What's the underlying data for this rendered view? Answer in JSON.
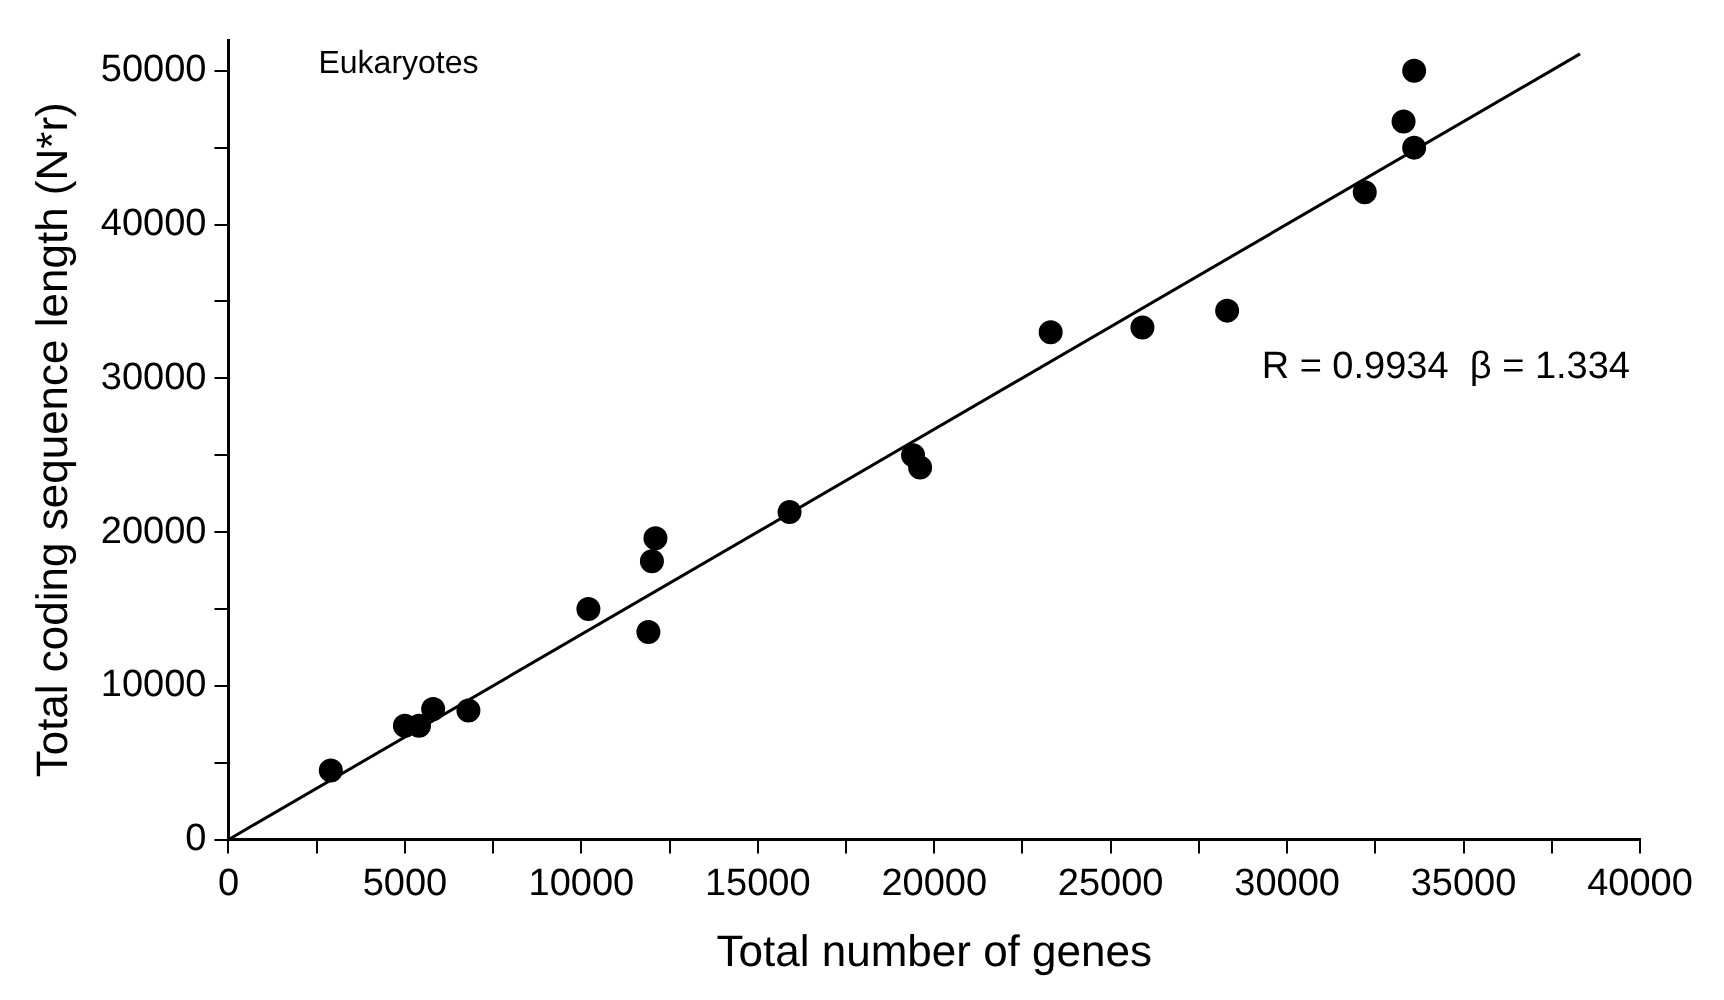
{
  "chart_data": {
    "type": "scatter",
    "xlabel": "Total number of genes",
    "ylabel": "Total coding sequence length (N*r)",
    "annotations": [
      "Eukaryotes",
      "R = 0.9934  β = 1.334"
    ],
    "series": [
      {
        "color": "#000000",
        "marker": "circle",
        "x": [
          2900,
          5000,
          5400,
          5800,
          6800,
          10200,
          11900,
          12000,
          12100,
          15900,
          19400,
          19600,
          23300,
          25900,
          28300,
          32200,
          33300,
          33600,
          33600
        ],
        "values": [
          4500,
          7400,
          7400,
          8500,
          8400,
          15000,
          13500,
          18100,
          19600,
          21300,
          25000,
          24200,
          33000,
          33300,
          34400,
          42100,
          46700,
          45000,
          50000
        ]
      },
      {
        "type": "line",
        "color": "#000000",
        "marker": "none",
        "x": [
          0,
          38300
        ],
        "values": [
          0,
          51100
        ]
      }
    ],
    "xlim": [
      0,
      40000
    ],
    "ylim": [
      0,
      52000
    ],
    "xticks": [
      0,
      {
        "value": 2500,
        "label": null
      },
      5000,
      {
        "value": 7500,
        "label": null
      },
      10000,
      {
        "value": 12500,
        "label": null
      },
      15000,
      {
        "value": 17500,
        "label": null
      },
      20000,
      {
        "value": 22500,
        "label": null
      },
      25000,
      {
        "value": 27500,
        "label": null
      },
      30000,
      {
        "value": 32500,
        "label": null
      },
      35000,
      {
        "value": 37500,
        "label": null
      },
      40000
    ],
    "yticks": [
      0,
      {
        "value": 5000,
        "label": null
      },
      10000,
      {
        "value": 15000,
        "label": null
      },
      20000,
      {
        "value": 25000,
        "label": null
      },
      30000,
      {
        "value": 35000,
        "label": null
      },
      40000,
      {
        "value": 45000,
        "label": null
      },
      50000
    ],
    "grid": false,
    "legend": false,
    "line_style": "solid"
  }
}
